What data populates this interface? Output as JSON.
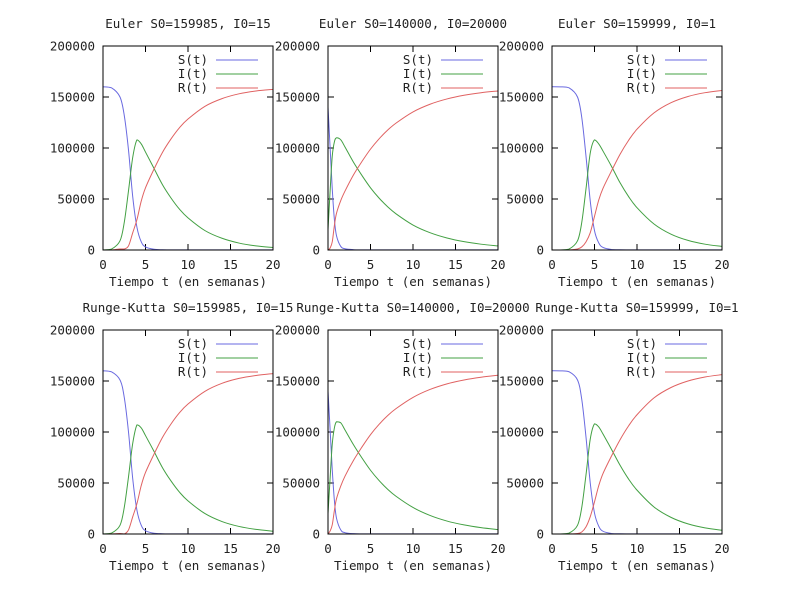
{
  "chart_data": [
    {
      "type": "line",
      "title": "Euler S0=159985, I0=15",
      "xlabel": "Tiempo t (en semanas)",
      "ylabel": "",
      "xlim": [
        0,
        20
      ],
      "ylim": [
        0,
        200000
      ],
      "xticks": [
        0,
        5,
        10,
        15,
        20
      ],
      "yticks": [
        0,
        50000,
        100000,
        150000,
        200000
      ],
      "legend": "top-right",
      "grid": false,
      "x": [
        0,
        1,
        2,
        2.5,
        3,
        3.5,
        4,
        4.5,
        5,
        6,
        7,
        8,
        9,
        10,
        12,
        14,
        16,
        18,
        20
      ],
      "series": [
        {
          "name": "S(t)",
          "color": "#6a6ae0",
          "values": [
            159985,
            159000,
            150000,
            132000,
            98000,
            52000,
            22000,
            8000,
            3000,
            700,
            250,
            130,
            90,
            80,
            75,
            72,
            70,
            70,
            70
          ]
        },
        {
          "name": "I(t)",
          "color": "#43a043",
          "values": [
            15,
            900,
            9000,
            27000,
            58000,
            91000,
            108000,
            104000,
            96000,
            80000,
            64000,
            51000,
            40000,
            31500,
            19000,
            11500,
            6800,
            4000,
            2400
          ]
        },
        {
          "name": "R(t)",
          "color": "#e06262",
          "values": [
            0,
            100,
            1000,
            1000,
            4000,
            17000,
            30000,
            48000,
            61000,
            79300,
            95750,
            108870,
            119910,
            128420,
            140925,
            148428,
            153130,
            155930,
            157530
          ]
        }
      ]
    },
    {
      "type": "line",
      "title": "Euler S0=140000, I0=20000",
      "xlabel": "Tiempo t (en semanas)",
      "ylabel": "",
      "xlim": [
        0,
        20
      ],
      "ylim": [
        0,
        200000
      ],
      "xticks": [
        0,
        5,
        10,
        15,
        20
      ],
      "yticks": [
        0,
        50000,
        100000,
        150000,
        200000
      ],
      "legend": "top-right",
      "grid": false,
      "x": [
        0,
        0.25,
        0.5,
        0.75,
        1,
        1.5,
        2,
        3,
        4,
        5,
        6,
        7,
        8,
        10,
        12,
        14,
        16,
        18,
        20
      ],
      "series": [
        {
          "name": "S(t)",
          "color": "#6a6ae0",
          "values": [
            140000,
            100000,
            60000,
            30000,
            14000,
            3500,
            1200,
            300,
            150,
            110,
            100,
            95,
            90,
            90,
            90,
            90,
            90,
            90,
            90
          ]
        },
        {
          "name": "I(t)",
          "color": "#43a043",
          "values": [
            20000,
            58000,
            92000,
            106000,
            110000,
            108000,
            101000,
            86000,
            73000,
            61000,
            51000,
            42500,
            35500,
            24500,
            17000,
            11800,
            8200,
            5700,
            4000
          ]
        },
        {
          "name": "R(t)",
          "color": "#e06262",
          "values": [
            0,
            2000,
            8000,
            24000,
            36000,
            48500,
            57800,
            73700,
            86850,
            98890,
            108900,
            117405,
            124410,
            135410,
            142910,
            148110,
            151710,
            154210,
            155910
          ]
        }
      ]
    },
    {
      "type": "line",
      "title": "Euler S0=159999, I0=1",
      "xlabel": "Tiempo t (en semanas)",
      "ylabel": "",
      "xlim": [
        0,
        20
      ],
      "ylim": [
        0,
        200000
      ],
      "xticks": [
        0,
        5,
        10,
        15,
        20
      ],
      "yticks": [
        0,
        50000,
        100000,
        150000,
        200000
      ],
      "legend": "top-right",
      "grid": false,
      "x": [
        0,
        1,
        2,
        3,
        3.5,
        4,
        4.5,
        5,
        5.5,
        6,
        7,
        8,
        9,
        10,
        12,
        14,
        16,
        18,
        20
      ],
      "series": [
        {
          "name": "S(t)",
          "color": "#6a6ae0",
          "values": [
            159999,
            159950,
            159000,
            150000,
            130000,
            92000,
            48000,
            19000,
            7000,
            2500,
            500,
            200,
            120,
            90,
            80,
            75,
            72,
            70,
            70
          ]
        },
        {
          "name": "I(t)",
          "color": "#43a043",
          "values": [
            1,
            60,
            900,
            9000,
            27000,
            60000,
            95000,
            108000,
            104000,
            97000,
            82000,
            66000,
            52500,
            41500,
            25500,
            15500,
            9400,
            5700,
            3500
          ]
        },
        {
          "name": "R(t)",
          "color": "#e06262",
          "values": [
            0,
            0,
            100,
            1000,
            3000,
            8000,
            17000,
            33000,
            49000,
            60500,
            77500,
            93800,
            107380,
            118410,
            134420,
            144430,
            150530,
            154230,
            156430
          ]
        }
      ]
    },
    {
      "type": "line",
      "title": "Runge-Kutta S0=159985, I0=15",
      "xlabel": "Tiempo t (en semanas)",
      "ylabel": "",
      "xlim": [
        0,
        20
      ],
      "ylim": [
        0,
        200000
      ],
      "xticks": [
        0,
        5,
        10,
        15,
        20
      ],
      "yticks": [
        0,
        50000,
        100000,
        150000,
        200000
      ],
      "legend": "top-right",
      "grid": false,
      "x": [
        0,
        1,
        2,
        2.5,
        3,
        3.5,
        4,
        4.5,
        5,
        6,
        7,
        8,
        9,
        10,
        12,
        14,
        16,
        18,
        20
      ],
      "series": [
        {
          "name": "S(t)",
          "color": "#6a6ae0",
          "values": [
            159985,
            159000,
            151000,
            134000,
            100000,
            54000,
            23000,
            8500,
            3200,
            750,
            260,
            140,
            95,
            85,
            78,
            74,
            72,
            72,
            72
          ]
        },
        {
          "name": "I(t)",
          "color": "#43a043",
          "values": [
            15,
            900,
            8500,
            26000,
            56000,
            89000,
            107000,
            104000,
            96500,
            81000,
            65000,
            52000,
            41000,
            32500,
            20000,
            12200,
            7400,
            4500,
            2700
          ]
        },
        {
          "name": "R(t)",
          "color": "#e06262",
          "values": [
            0,
            100,
            500,
            0,
            4000,
            16985,
            29985,
            47500,
            60300,
            78250,
            94740,
            107860,
            118905,
            127415,
            139922,
            147726,
            152528,
            155428,
            157228
          ]
        }
      ]
    },
    {
      "type": "line",
      "title": "Runge-Kutta S0=140000, I0=20000",
      "xlabel": "Tiempo t (en semanas)",
      "ylabel": "",
      "xlim": [
        0,
        20
      ],
      "ylim": [
        0,
        200000
      ],
      "xticks": [
        0,
        5,
        10,
        15,
        20
      ],
      "yticks": [
        0,
        50000,
        100000,
        150000,
        200000
      ],
      "legend": "top-right",
      "grid": false,
      "x": [
        0,
        0.25,
        0.5,
        0.75,
        1,
        1.5,
        2,
        3,
        4,
        5,
        6,
        7,
        8,
        10,
        12,
        14,
        16,
        18,
        20
      ],
      "series": [
        {
          "name": "S(t)",
          "color": "#6a6ae0",
          "values": [
            140000,
            102000,
            63000,
            33000,
            15500,
            4000,
            1300,
            320,
            160,
            115,
            105,
            100,
            95,
            95,
            95,
            95,
            95,
            95,
            95
          ]
        },
        {
          "name": "I(t)",
          "color": "#43a043",
          "values": [
            20000,
            55000,
            88000,
            104000,
            110000,
            109000,
            102000,
            87500,
            74500,
            62500,
            52500,
            44000,
            37000,
            26000,
            18200,
            12700,
            8900,
            6200,
            4300
          ]
        },
        {
          "name": "R(t)",
          "color": "#e06262",
          "values": [
            0,
            3000,
            9000,
            23000,
            34500,
            47000,
            56700,
            72180,
            85340,
            97385,
            107395,
            115900,
            122905,
            133905,
            141705,
            147205,
            151005,
            153705,
            155605
          ]
        }
      ]
    },
    {
      "type": "line",
      "title": "Runge-Kutta S0=159999, I0=1",
      "xlabel": "Tiempo t (en semanas)",
      "ylabel": "",
      "xlim": [
        0,
        20
      ],
      "ylim": [
        0,
        200000
      ],
      "xticks": [
        0,
        5,
        10,
        15,
        20
      ],
      "yticks": [
        0,
        50000,
        100000,
        150000,
        200000
      ],
      "legend": "top-right",
      "grid": false,
      "x": [
        0,
        1,
        2,
        3,
        3.5,
        4,
        4.5,
        5,
        5.5,
        6,
        7,
        8,
        9,
        10,
        12,
        14,
        16,
        18,
        20
      ],
      "series": [
        {
          "name": "S(t)",
          "color": "#6a6ae0",
          "values": [
            159999,
            159950,
            159100,
            151000,
            132000,
            95000,
            50000,
            20500,
            7600,
            2700,
            550,
            210,
            125,
            95,
            82,
            76,
            73,
            72,
            72
          ]
        },
        {
          "name": "I(t)",
          "color": "#43a043",
          "values": [
            1,
            60,
            850,
            8500,
            26000,
            58000,
            93000,
            108000,
            105000,
            98000,
            83000,
            67500,
            54000,
            43000,
            26500,
            16300,
            9900,
            6000,
            3700
          ]
        },
        {
          "name": "R(t)",
          "color": "#e06262",
          "values": [
            0,
            0,
            50,
            500,
            2000,
            7000,
            17000,
            31500,
            47400,
            59300,
            76450,
            92290,
            105875,
            116905,
            133418,
            143624,
            150027,
            153928,
            156228
          ]
        }
      ]
    }
  ]
}
